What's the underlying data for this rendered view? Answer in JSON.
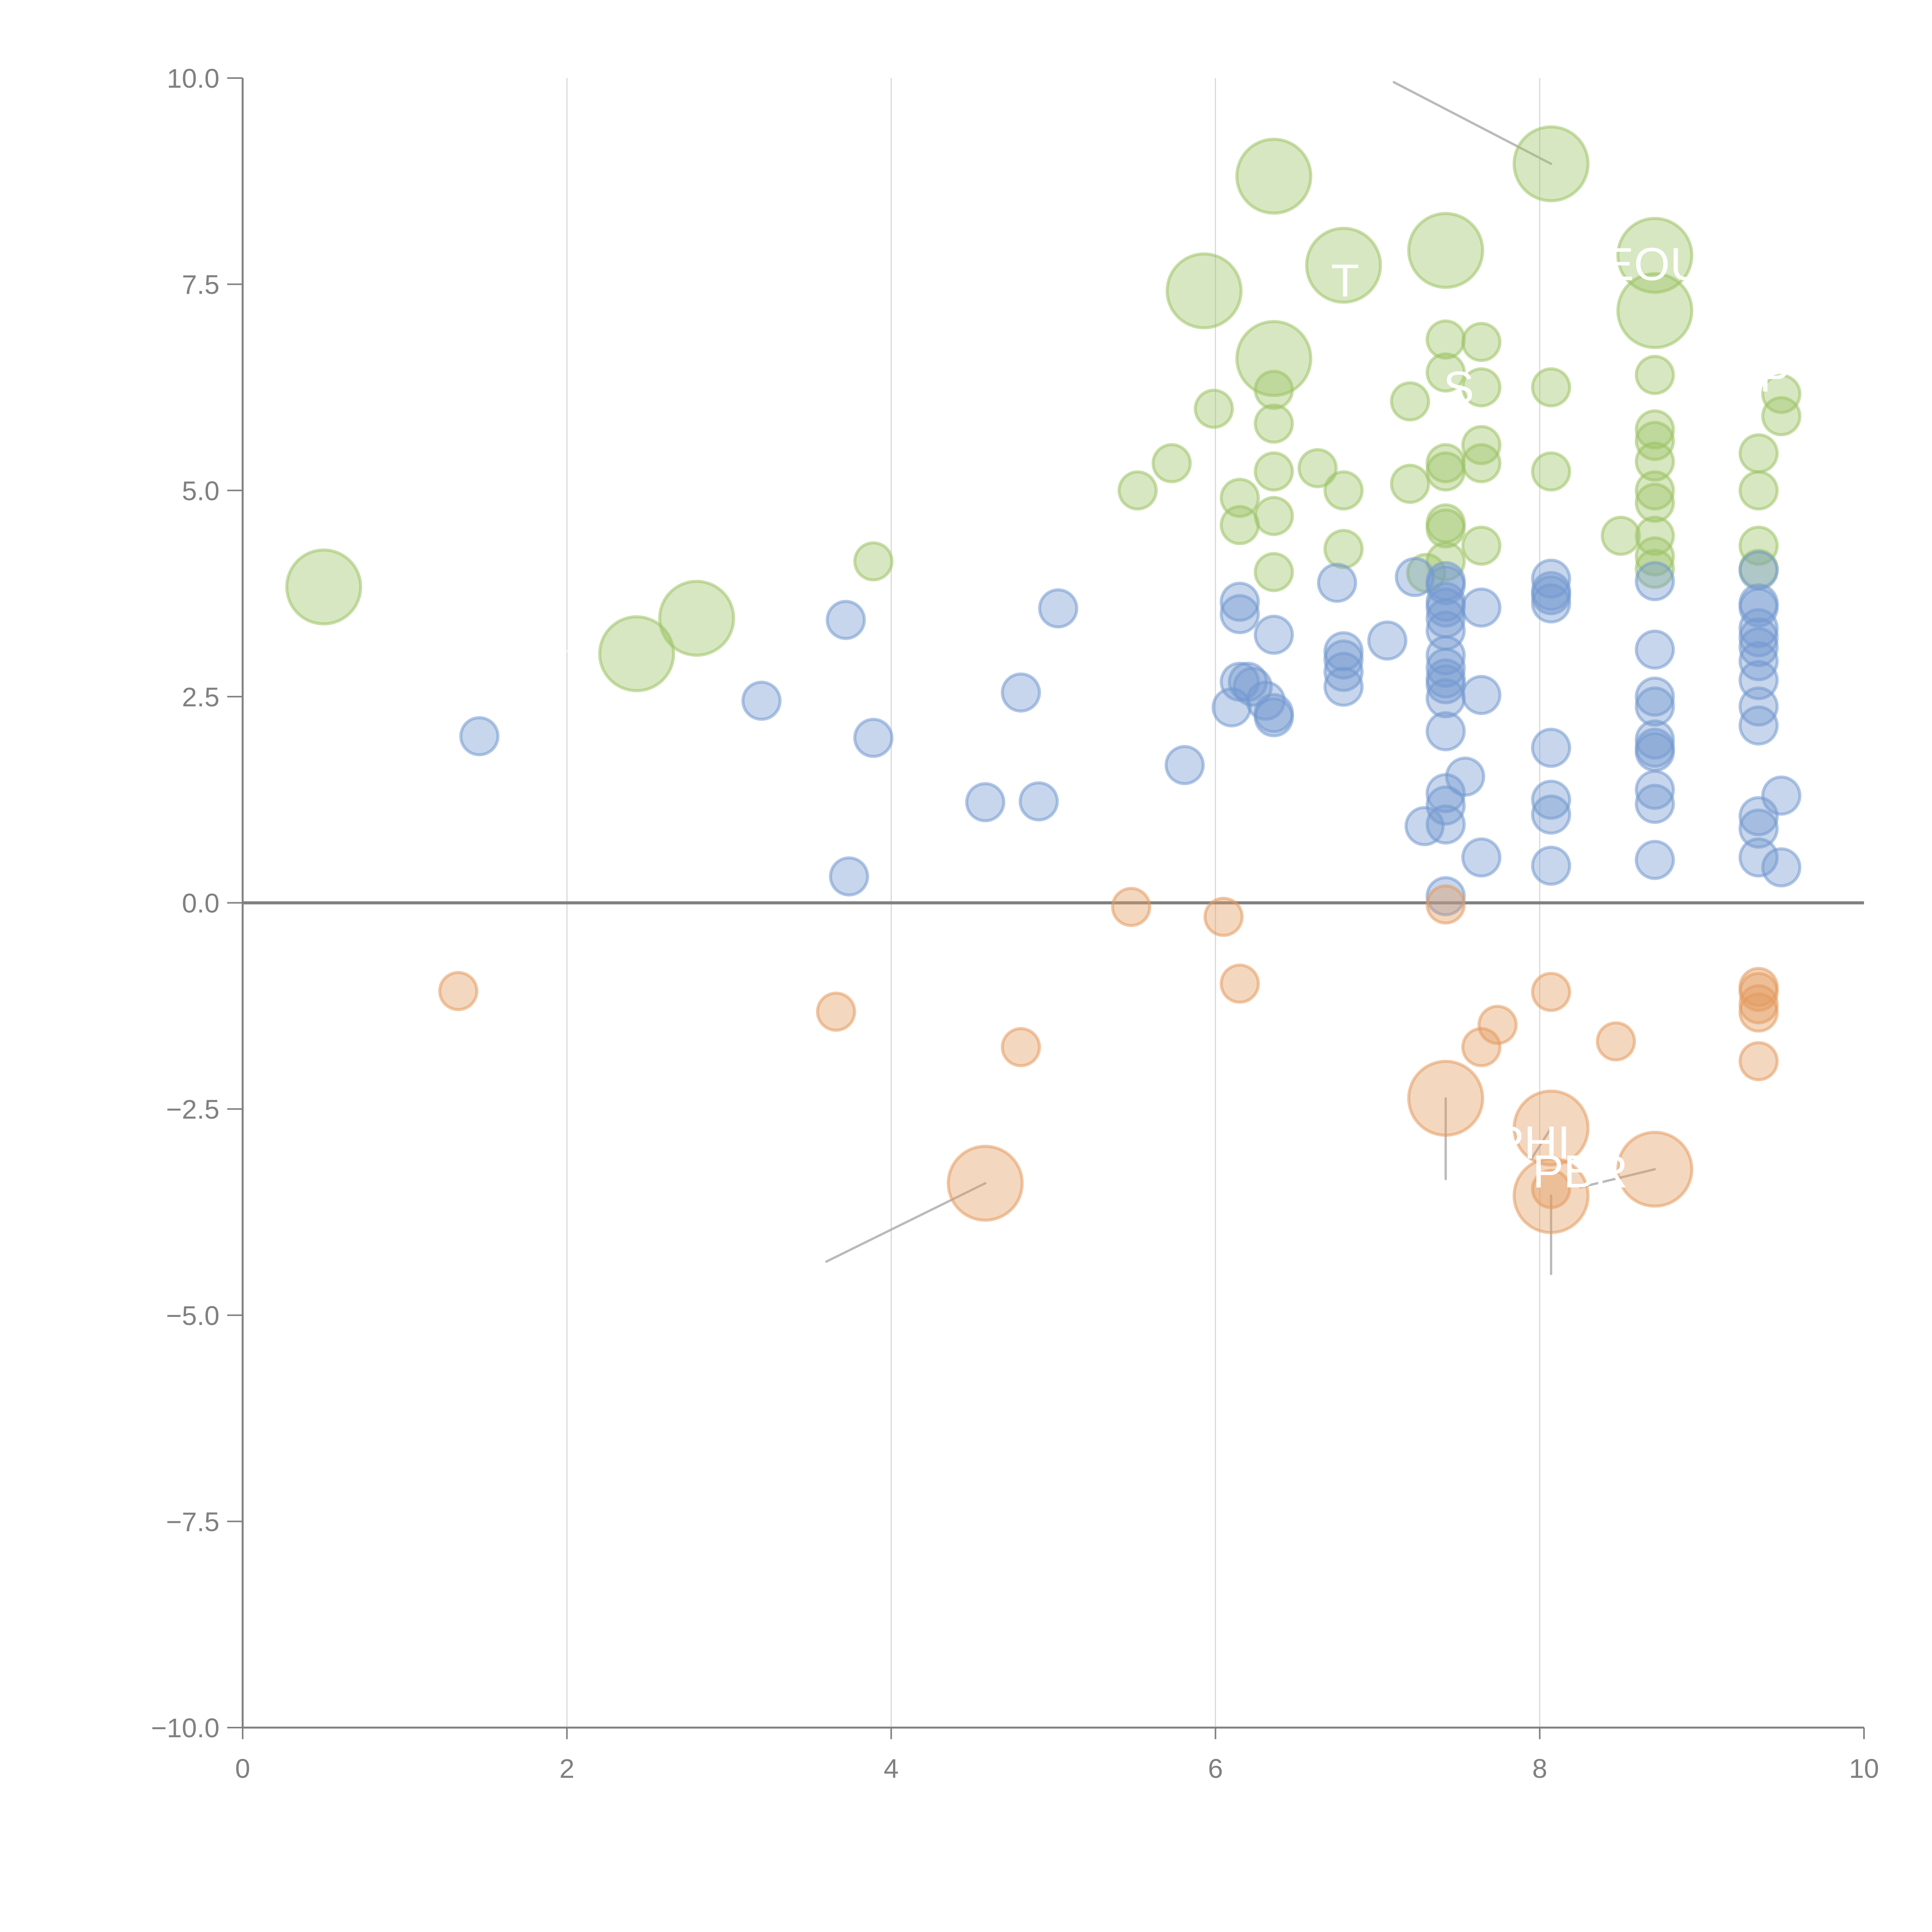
{
  "chart_data": {
    "type": "scatter",
    "subtype": "bubble",
    "title": "",
    "xlabel": "",
    "ylabel": "",
    "xlim": [
      0,
      10
    ],
    "ylim": [
      -10,
      10
    ],
    "x_ticks": [
      "0",
      "2",
      "4",
      "6",
      "8",
      "10"
    ],
    "y_ticks": [
      "10.0",
      "7.5",
      "5.0",
      "2.5",
      "0.0",
      "−2.5",
      "−5.0",
      "−7.5",
      "−10.0"
    ],
    "grid": "vertical",
    "zero_line": true,
    "legend": "none",
    "series": [
      {
        "name": "green",
        "color": "#9cc265",
        "points": [
          {
            "x": 0.5,
            "y": 3.83,
            "s": 3
          },
          {
            "x": 2.43,
            "y": 3.02,
            "s": 3
          },
          {
            "x": 2.8,
            "y": 3.45,
            "s": 3
          },
          {
            "x": 3.89,
            "y": 4.14,
            "s": 1
          },
          {
            "x": 5.52,
            "y": 5.0,
            "s": 1
          },
          {
            "x": 5.73,
            "y": 5.33,
            "s": 1
          },
          {
            "x": 5.93,
            "y": 7.42,
            "s": 3
          },
          {
            "x": 5.99,
            "y": 5.99,
            "s": 1
          },
          {
            "x": 6.15,
            "y": 4.58,
            "s": 1
          },
          {
            "x": 6.15,
            "y": 4.91,
            "s": 1
          },
          {
            "x": 6.36,
            "y": 8.81,
            "s": 3
          },
          {
            "x": 6.36,
            "y": 6.6,
            "s": 3
          },
          {
            "x": 6.36,
            "y": 6.22,
            "s": 1
          },
          {
            "x": 6.36,
            "y": 5.81,
            "s": 1
          },
          {
            "x": 6.36,
            "y": 5.23,
            "s": 1
          },
          {
            "x": 6.36,
            "y": 4.69,
            "s": 1
          },
          {
            "x": 6.36,
            "y": 4.01,
            "s": 1
          },
          {
            "x": 6.63,
            "y": 5.27,
            "s": 1
          },
          {
            "x": 6.79,
            "y": 7.73,
            "s": 3
          },
          {
            "x": 6.79,
            "y": 5.0,
            "s": 1
          },
          {
            "x": 6.79,
            "y": 4.29,
            "s": 1
          },
          {
            "x": 7.2,
            "y": 6.08,
            "s": 1
          },
          {
            "x": 7.2,
            "y": 5.08,
            "s": 1
          },
          {
            "x": 7.42,
            "y": 7.91,
            "s": 3
          },
          {
            "x": 7.42,
            "y": 6.83,
            "s": 1
          },
          {
            "x": 7.42,
            "y": 6.43,
            "s": 1
          },
          {
            "x": 7.42,
            "y": 5.33,
            "s": 1
          },
          {
            "x": 7.42,
            "y": 5.23,
            "s": 1
          },
          {
            "x": 7.42,
            "y": 4.6,
            "s": 1
          },
          {
            "x": 7.42,
            "y": 4.54,
            "s": 1
          },
          {
            "x": 7.42,
            "y": 4.14,
            "s": 1
          },
          {
            "x": 7.3,
            "y": 4.0,
            "s": 1
          },
          {
            "x": 7.64,
            "y": 6.8,
            "s": 1
          },
          {
            "x": 7.64,
            "y": 6.25,
            "s": 1
          },
          {
            "x": 7.64,
            "y": 5.55,
            "s": 1
          },
          {
            "x": 7.64,
            "y": 5.33,
            "s": 1
          },
          {
            "x": 7.64,
            "y": 4.33,
            "s": 1
          },
          {
            "x": 8.07,
            "y": 8.96,
            "s": 3
          },
          {
            "x": 8.07,
            "y": 6.25,
            "s": 1
          },
          {
            "x": 8.07,
            "y": 5.23,
            "s": 1
          },
          {
            "x": 8.5,
            "y": 4.45,
            "s": 1
          },
          {
            "x": 8.71,
            "y": 7.85,
            "s": 3
          },
          {
            "x": 8.71,
            "y": 7.18,
            "s": 3
          },
          {
            "x": 8.71,
            "y": 6.4,
            "s": 1
          },
          {
            "x": 8.71,
            "y": 5.74,
            "s": 1
          },
          {
            "x": 8.71,
            "y": 5.6,
            "s": 1
          },
          {
            "x": 8.71,
            "y": 5.35,
            "s": 1
          },
          {
            "x": 8.71,
            "y": 5.0,
            "s": 1
          },
          {
            "x": 8.71,
            "y": 4.85,
            "s": 1
          },
          {
            "x": 8.71,
            "y": 4.45,
            "s": 1
          },
          {
            "x": 8.71,
            "y": 4.2,
            "s": 1
          },
          {
            "x": 8.71,
            "y": 4.05,
            "s": 1
          },
          {
            "x": 9.35,
            "y": 5.45,
            "s": 1
          },
          {
            "x": 9.35,
            "y": 5.0,
            "s": 1
          },
          {
            "x": 9.35,
            "y": 4.33,
            "s": 1
          },
          {
            "x": 9.35,
            "y": 4.05,
            "s": 1
          },
          {
            "x": 9.49,
            "y": 6.17,
            "s": 1
          },
          {
            "x": 9.49,
            "y": 5.9,
            "s": 1
          }
        ]
      },
      {
        "name": "blue",
        "color": "#7399cf",
        "points": [
          {
            "x": 1.46,
            "y": 2.02,
            "s": 1
          },
          {
            "x": 3.2,
            "y": 2.45,
            "s": 1
          },
          {
            "x": 3.72,
            "y": 3.43,
            "s": 1
          },
          {
            "x": 3.74,
            "y": 0.32,
            "s": 1
          },
          {
            "x": 3.89,
            "y": 2.0,
            "s": 1
          },
          {
            "x": 4.58,
            "y": 1.22,
            "s": 1
          },
          {
            "x": 4.8,
            "y": 2.55,
            "s": 1
          },
          {
            "x": 4.91,
            "y": 1.23,
            "s": 1
          },
          {
            "x": 5.03,
            "y": 3.57,
            "s": 1
          },
          {
            "x": 5.81,
            "y": 1.67,
            "s": 1
          },
          {
            "x": 6.1,
            "y": 2.37,
            "s": 1
          },
          {
            "x": 6.15,
            "y": 3.65,
            "s": 1
          },
          {
            "x": 6.15,
            "y": 3.5,
            "s": 1
          },
          {
            "x": 6.15,
            "y": 2.68,
            "s": 1
          },
          {
            "x": 6.2,
            "y": 2.68,
            "s": 1
          },
          {
            "x": 6.23,
            "y": 2.62,
            "s": 1
          },
          {
            "x": 6.31,
            "y": 2.45,
            "s": 1
          },
          {
            "x": 6.36,
            "y": 2.3,
            "s": 1
          },
          {
            "x": 6.36,
            "y": 2.25,
            "s": 1
          },
          {
            "x": 6.36,
            "y": 3.25,
            "s": 1
          },
          {
            "x": 6.75,
            "y": 3.88,
            "s": 1
          },
          {
            "x": 6.79,
            "y": 3.05,
            "s": 1
          },
          {
            "x": 6.79,
            "y": 2.95,
            "s": 1
          },
          {
            "x": 6.79,
            "y": 2.8,
            "s": 1
          },
          {
            "x": 6.79,
            "y": 2.62,
            "s": 1
          },
          {
            "x": 7.06,
            "y": 3.18,
            "s": 1
          },
          {
            "x": 7.23,
            "y": 3.95,
            "s": 1
          },
          {
            "x": 7.29,
            "y": 0.93,
            "s": 1
          },
          {
            "x": 7.42,
            "y": 3.9,
            "s": 1
          },
          {
            "x": 7.42,
            "y": 3.85,
            "s": 1
          },
          {
            "x": 7.42,
            "y": 3.65,
            "s": 1
          },
          {
            "x": 7.42,
            "y": 3.58,
            "s": 1
          },
          {
            "x": 7.42,
            "y": 3.45,
            "s": 1
          },
          {
            "x": 7.42,
            "y": 3.3,
            "s": 1
          },
          {
            "x": 7.42,
            "y": 3.0,
            "s": 1
          },
          {
            "x": 7.42,
            "y": 2.85,
            "s": 1
          },
          {
            "x": 7.42,
            "y": 2.72,
            "s": 1
          },
          {
            "x": 7.42,
            "y": 2.65,
            "s": 1
          },
          {
            "x": 7.42,
            "y": 2.48,
            "s": 1
          },
          {
            "x": 7.42,
            "y": 2.08,
            "s": 1
          },
          {
            "x": 7.42,
            "y": 1.33,
            "s": 1
          },
          {
            "x": 7.42,
            "y": 1.18,
            "s": 1
          },
          {
            "x": 7.42,
            "y": 0.95,
            "s": 1
          },
          {
            "x": 7.42,
            "y": 0.08,
            "s": 1
          },
          {
            "x": 7.54,
            "y": 1.53,
            "s": 1
          },
          {
            "x": 7.64,
            "y": 3.58,
            "s": 1
          },
          {
            "x": 7.64,
            "y": 2.52,
            "s": 1
          },
          {
            "x": 7.64,
            "y": 0.55,
            "s": 1
          },
          {
            "x": 8.07,
            "y": 3.93,
            "s": 1
          },
          {
            "x": 8.07,
            "y": 3.78,
            "s": 1
          },
          {
            "x": 8.07,
            "y": 3.73,
            "s": 1
          },
          {
            "x": 8.07,
            "y": 3.63,
            "s": 1
          },
          {
            "x": 8.07,
            "y": 1.88,
            "s": 1
          },
          {
            "x": 8.07,
            "y": 1.25,
            "s": 1
          },
          {
            "x": 8.07,
            "y": 1.07,
            "s": 1
          },
          {
            "x": 8.07,
            "y": 0.45,
            "s": 1
          },
          {
            "x": 8.71,
            "y": 3.9,
            "s": 1
          },
          {
            "x": 8.71,
            "y": 3.07,
            "s": 1
          },
          {
            "x": 8.71,
            "y": 2.5,
            "s": 1
          },
          {
            "x": 8.71,
            "y": 2.38,
            "s": 1
          },
          {
            "x": 8.71,
            "y": 1.98,
            "s": 1
          },
          {
            "x": 8.71,
            "y": 1.88,
            "s": 1
          },
          {
            "x": 8.71,
            "y": 1.83,
            "s": 1
          },
          {
            "x": 8.71,
            "y": 1.37,
            "s": 1
          },
          {
            "x": 8.71,
            "y": 1.2,
            "s": 1
          },
          {
            "x": 8.71,
            "y": 0.52,
            "s": 1
          },
          {
            "x": 9.35,
            "y": 4.03,
            "s": 1
          },
          {
            "x": 9.35,
            "y": 3.63,
            "s": 1
          },
          {
            "x": 9.35,
            "y": 3.58,
            "s": 1
          },
          {
            "x": 9.35,
            "y": 3.33,
            "s": 1
          },
          {
            "x": 9.35,
            "y": 3.22,
            "s": 1
          },
          {
            "x": 9.35,
            "y": 3.1,
            "s": 1
          },
          {
            "x": 9.35,
            "y": 2.93,
            "s": 1
          },
          {
            "x": 9.35,
            "y": 2.7,
            "s": 1
          },
          {
            "x": 9.35,
            "y": 2.38,
            "s": 1
          },
          {
            "x": 9.35,
            "y": 2.15,
            "s": 1
          },
          {
            "x": 9.35,
            "y": 1.05,
            "s": 1
          },
          {
            "x": 9.35,
            "y": 0.9,
            "s": 1
          },
          {
            "x": 9.35,
            "y": 0.55,
            "s": 1
          },
          {
            "x": 9.49,
            "y": 1.3,
            "s": 1
          },
          {
            "x": 9.49,
            "y": 0.43,
            "s": 1
          }
        ]
      },
      {
        "name": "orange",
        "color": "#e39a5e",
        "points": [
          {
            "x": 1.33,
            "y": -1.07,
            "s": 1
          },
          {
            "x": 3.66,
            "y": -1.32,
            "s": 1
          },
          {
            "x": 4.58,
            "y": -3.4,
            "s": 3
          },
          {
            "x": 4.8,
            "y": -1.75,
            "s": 1
          },
          {
            "x": 5.48,
            "y": -0.05,
            "s": 1
          },
          {
            "x": 6.05,
            "y": -0.17,
            "s": 1
          },
          {
            "x": 6.15,
            "y": -0.98,
            "s": 1
          },
          {
            "x": 7.42,
            "y": -0.02,
            "s": 1
          },
          {
            "x": 7.42,
            "y": -2.37,
            "s": 3
          },
          {
            "x": 7.64,
            "y": -1.75,
            "s": 1
          },
          {
            "x": 7.74,
            "y": -1.48,
            "s": 1
          },
          {
            "x": 8.07,
            "y": -1.08,
            "s": 1
          },
          {
            "x": 8.07,
            "y": -2.73,
            "s": 3
          },
          {
            "x": 8.07,
            "y": -3.47,
            "s": 1
          },
          {
            "x": 8.07,
            "y": -3.55,
            "s": 3
          },
          {
            "x": 8.47,
            "y": -1.68,
            "s": 1
          },
          {
            "x": 8.71,
            "y": -3.23,
            "s": 3
          },
          {
            "x": 9.35,
            "y": -1.02,
            "s": 1
          },
          {
            "x": 9.35,
            "y": -1.08,
            "s": 1
          },
          {
            "x": 9.35,
            "y": -1.23,
            "s": 1
          },
          {
            "x": 9.35,
            "y": -1.33,
            "s": 1
          },
          {
            "x": 9.35,
            "y": -1.92,
            "s": 1
          }
        ]
      }
    ],
    "annotations": [
      {
        "text": "",
        "x": 7.1,
        "y": 9.95,
        "target_x": 8.07,
        "target_y": 8.96,
        "leader_color": "#b3b3b3"
      },
      {
        "text": "T",
        "x": 6.8,
        "y": 7.35,
        "target_x": 6.79,
        "target_y": 7.73,
        "leader_color": "#ffffff"
      },
      {
        "text": "EOU",
        "x": 8.7,
        "y": 7.55,
        "target_x": 8.71,
        "target_y": 7.85,
        "leader_color": "#ffffff"
      },
      {
        "text": "S",
        "x": 7.5,
        "y": 6.05,
        "target_x": 7.42,
        "target_y": 7.91,
        "leader_color": "#ffffff"
      },
      {
        "text": "P",
        "x": 9.45,
        "y": 6.2,
        "target_x": 8.71,
        "target_y": 7.18,
        "leader_color": "#ffffff"
      },
      {
        "text": "",
        "x": 6.36,
        "y": 6.1,
        "target_x": 6.36,
        "target_y": 6.6,
        "leader_color": "#ffffff"
      },
      {
        "text": "",
        "x": 5.5,
        "y": 7.5,
        "target_x": 5.93,
        "target_y": 7.42,
        "leader_color": "#ffffff"
      },
      {
        "text": "",
        "x": 2.0,
        "y": 3.05,
        "target_x": 2.43,
        "target_y": 3.02,
        "leader_color": "#ffffff"
      },
      {
        "text": "",
        "x": 2.95,
        "y": 3.75,
        "target_x": 2.8,
        "target_y": 3.45,
        "leader_color": "#ffffff"
      },
      {
        "text": "",
        "x": 3.6,
        "y": -4.35,
        "target_x": 4.58,
        "target_y": -3.4,
        "leader_color": "#b3b3b3"
      },
      {
        "text": "PHI",
        "x": 7.95,
        "y": -3.1,
        "target_x": 8.07,
        "target_y": -2.73,
        "leader_color": "#b3b3b3"
      },
      {
        "text": "PBR",
        "x": 8.25,
        "y": -3.45,
        "target_x": 8.71,
        "target_y": -3.23,
        "leader_color": "#b3b3b3"
      },
      {
        "text": "",
        "x": 7.42,
        "y": -3.35,
        "target_x": 7.42,
        "target_y": -2.37,
        "leader_color": "#b3b3b3"
      },
      {
        "text": "",
        "x": 8.07,
        "y": -4.5,
        "target_x": 8.07,
        "target_y": -3.55,
        "leader_color": "#b3b3b3"
      }
    ]
  }
}
